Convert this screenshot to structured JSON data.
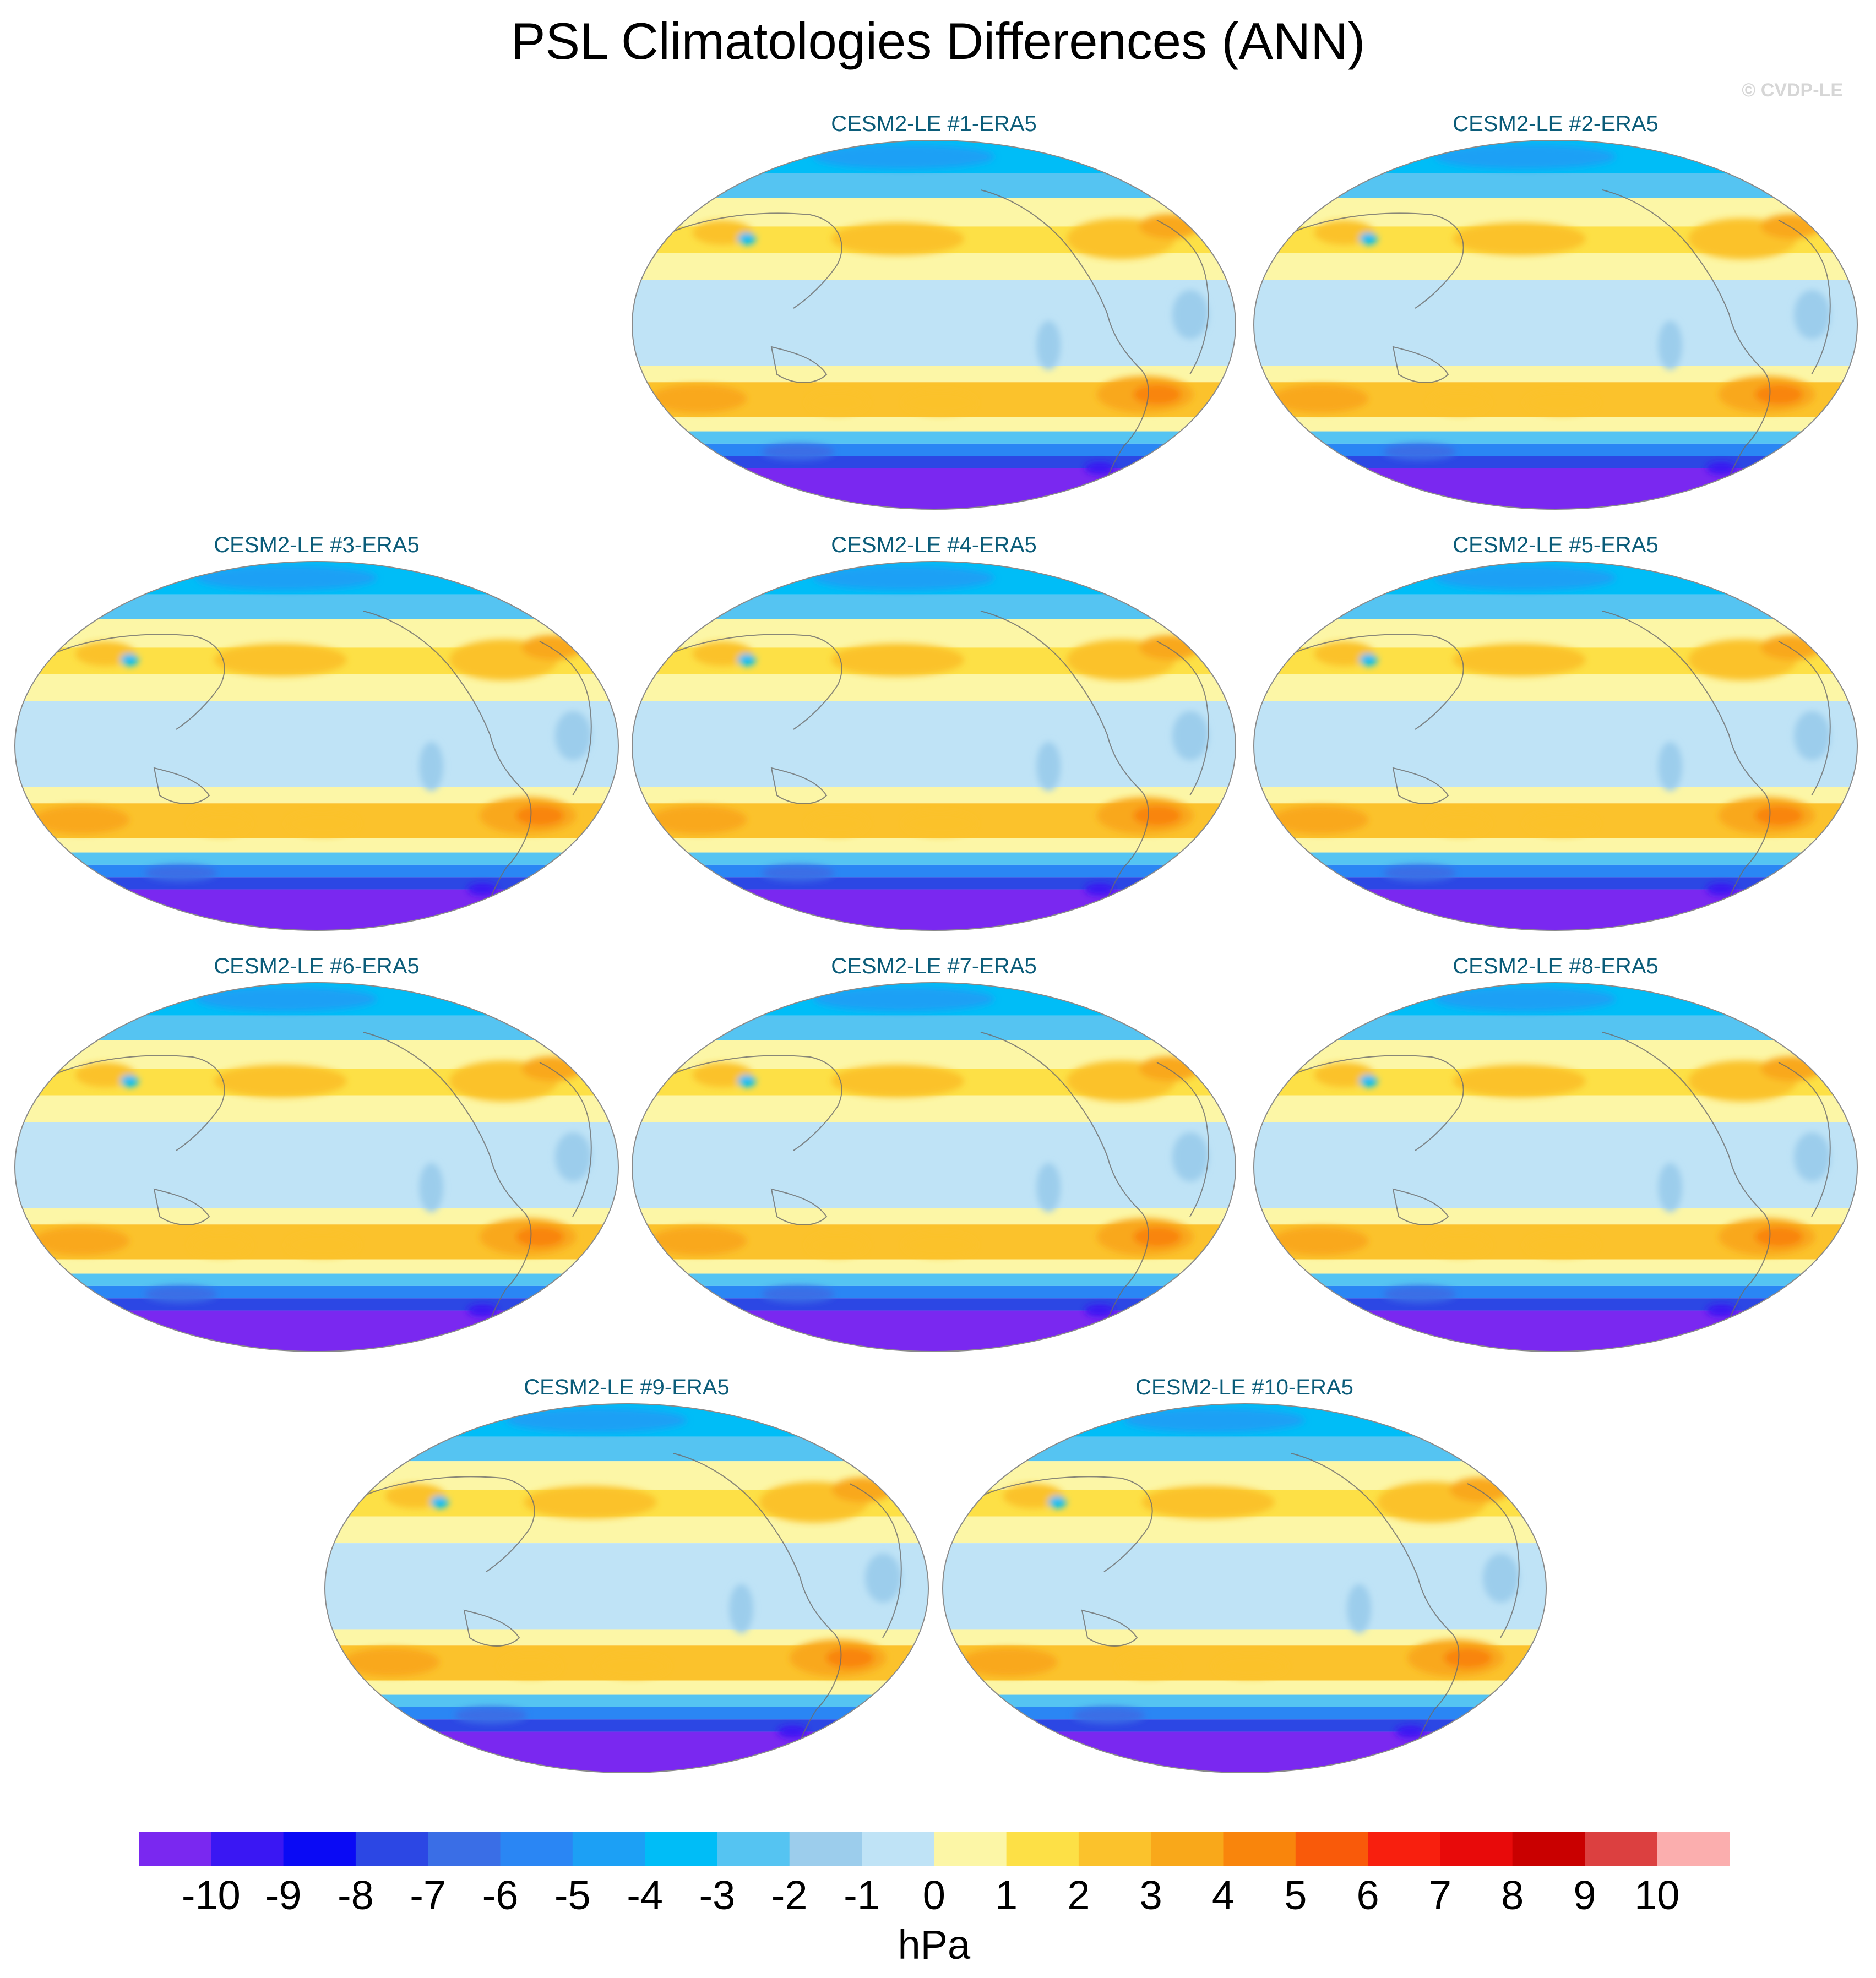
{
  "chart_data": {
    "type": "heatmap",
    "title": "PSL Climatologies Differences (ANN)",
    "watermark": "© CVDP-LE",
    "projection": "robinson-like global map, Pacific-centered",
    "variable": "PSL",
    "season": "ANN",
    "units": "hPa",
    "colorbar": {
      "label": "hPa",
      "ticks": [
        "-10",
        "-9",
        "-8",
        "-7",
        "-6",
        "-5",
        "-4",
        "-3",
        "-2",
        "-1",
        "0",
        "1",
        "2",
        "3",
        "4",
        "5",
        "6",
        "7",
        "8",
        "9",
        "10"
      ],
      "colors": [
        "#7a28f0",
        "#3a17f3",
        "#0a0af5",
        "#2c47e4",
        "#3a6ee6",
        "#2a86f4",
        "#1ca0f5",
        "#00bdf7",
        "#55c4f2",
        "#9ccdec",
        "#bfe3f6",
        "#fcf6a6",
        "#fde046",
        "#fbc22c",
        "#f9a81a",
        "#f9850c",
        "#f95a0a",
        "#f81f0e",
        "#e80a0a",
        "#c90000",
        "#dc4040",
        "#fbaeae"
      ]
    },
    "panels": [
      {
        "title": "CESM2-LE #1-ERA5"
      },
      {
        "title": "CESM2-LE #2-ERA5"
      },
      {
        "title": "CESM2-LE #3-ERA5"
      },
      {
        "title": "CESM2-LE #4-ERA5"
      },
      {
        "title": "CESM2-LE #5-ERA5"
      },
      {
        "title": "CESM2-LE #6-ERA5"
      },
      {
        "title": "CESM2-LE #7-ERA5"
      },
      {
        "title": "CESM2-LE #8-ERA5"
      },
      {
        "title": "CESM2-LE #9-ERA5"
      },
      {
        "title": "CESM2-LE #10-ERA5"
      }
    ],
    "approx_field_pattern_hPa": {
      "antarctic_coast": -10,
      "southern_ocean_band": -7,
      "south_atlantic_high": 4,
      "south_indian_pacific_subtropics": 3,
      "north_pacific": 2,
      "north_atlantic_europe": 3,
      "tropics": 0,
      "arctic": -3
    }
  }
}
